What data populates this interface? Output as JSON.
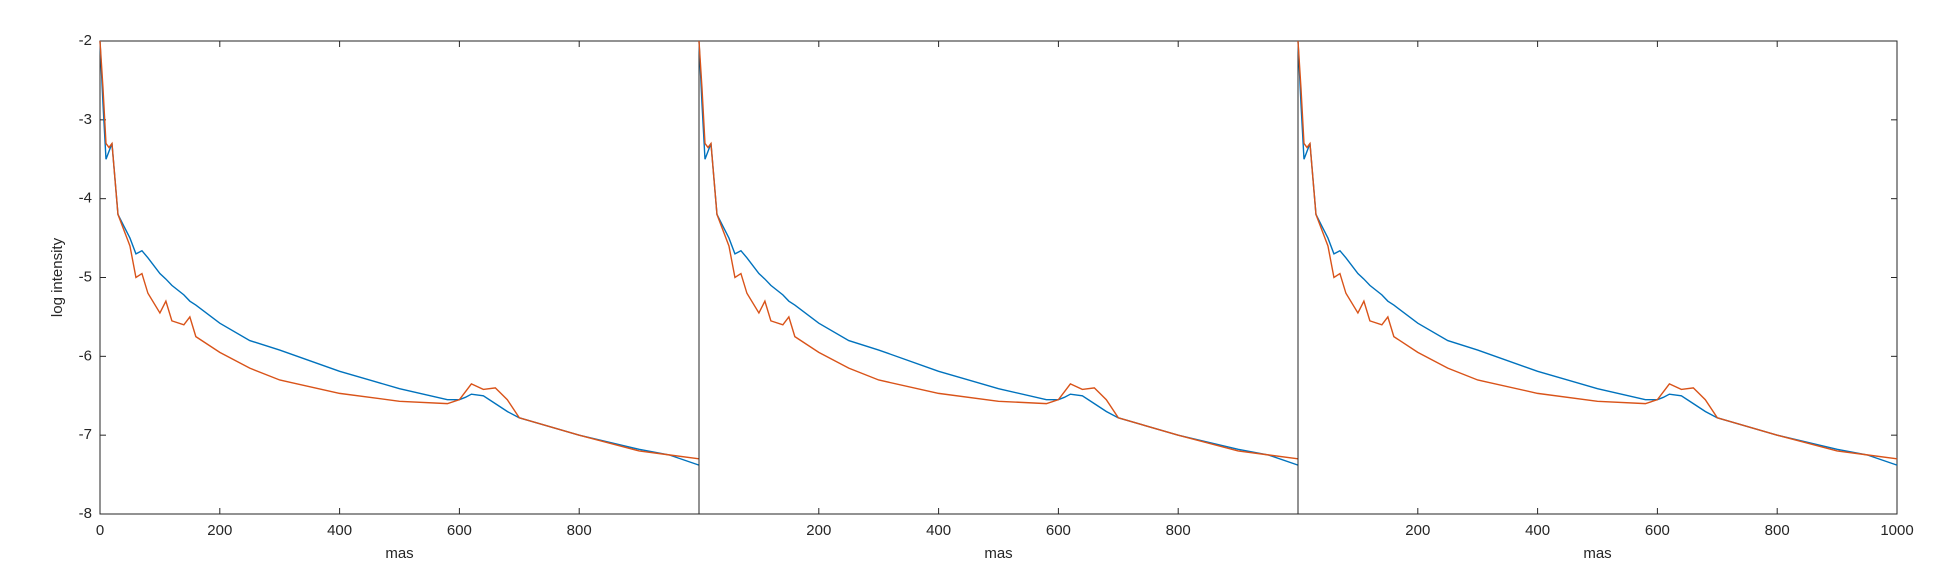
{
  "chart_data": [
    {
      "type": "line",
      "xlabel": "mas",
      "ylabel": "log intensity",
      "xlim": [
        0,
        1000
      ],
      "ylim": [
        -8,
        -2
      ],
      "xticks": [
        0,
        200,
        400,
        600,
        800
      ],
      "yticks": [
        -2,
        -3,
        -4,
        -5,
        -6,
        -7,
        -8
      ],
      "x": [
        0,
        5,
        10,
        15,
        20,
        30,
        40,
        50,
        60,
        70,
        80,
        100,
        110,
        120,
        140,
        150,
        160,
        200,
        250,
        300,
        400,
        500,
        580,
        600,
        610,
        620,
        640,
        660,
        680,
        700,
        800,
        900,
        950,
        1000
      ],
      "series": [
        {
          "name": "blue",
          "color": "#0072BD",
          "values": [
            -2,
            -2.8,
            -3.5,
            -3.4,
            -3.3,
            -4.2,
            -4.35,
            -4.5,
            -4.7,
            -4.66,
            -4.75,
            -4.95,
            -5.02,
            -5.1,
            -5.22,
            -5.3,
            -5.35,
            -5.58,
            -5.8,
            -5.92,
            -6.19,
            -6.41,
            -6.55,
            -6.55,
            -6.52,
            -6.48,
            -6.5,
            -6.6,
            -6.7,
            -6.78,
            -7.0,
            -7.18,
            -7.25,
            -7.38
          ]
        },
        {
          "name": "orange",
          "color": "#D95319",
          "values": [
            -2,
            -2.6,
            -3.3,
            -3.35,
            -3.3,
            -4.2,
            -4.4,
            -4.6,
            -5.0,
            -4.95,
            -5.2,
            -5.45,
            -5.3,
            -5.55,
            -5.6,
            -5.5,
            -5.75,
            -5.95,
            -6.15,
            -6.3,
            -6.47,
            -6.57,
            -6.6,
            -6.55,
            -6.45,
            -6.35,
            -6.42,
            -6.4,
            -6.55,
            -6.78,
            -7.0,
            -7.2,
            -7.25,
            -7.3
          ]
        }
      ]
    },
    {
      "type": "line",
      "xlabel": "mas",
      "xlim": [
        0,
        1000
      ],
      "ylim": [
        -8,
        -2
      ],
      "xticks": [
        200,
        400,
        600,
        800
      ],
      "x": [
        0,
        5,
        10,
        15,
        20,
        30,
        40,
        50,
        60,
        70,
        80,
        100,
        110,
        120,
        140,
        150,
        160,
        200,
        250,
        300,
        400,
        500,
        580,
        600,
        610,
        620,
        640,
        660,
        680,
        700,
        800,
        900,
        950,
        1000
      ],
      "series": [
        {
          "name": "blue",
          "color": "#0072BD",
          "values": [
            -2,
            -2.8,
            -3.5,
            -3.4,
            -3.3,
            -4.2,
            -4.35,
            -4.5,
            -4.7,
            -4.66,
            -4.75,
            -4.95,
            -5.02,
            -5.1,
            -5.22,
            -5.3,
            -5.35,
            -5.58,
            -5.8,
            -5.92,
            -6.19,
            -6.41,
            -6.55,
            -6.55,
            -6.52,
            -6.48,
            -6.5,
            -6.6,
            -6.7,
            -6.78,
            -7.0,
            -7.18,
            -7.25,
            -7.38
          ]
        },
        {
          "name": "orange",
          "color": "#D95319",
          "values": [
            -2,
            -2.6,
            -3.3,
            -3.35,
            -3.3,
            -4.2,
            -4.4,
            -4.6,
            -5.0,
            -4.95,
            -5.2,
            -5.45,
            -5.3,
            -5.55,
            -5.6,
            -5.5,
            -5.75,
            -5.95,
            -6.15,
            -6.3,
            -6.47,
            -6.57,
            -6.6,
            -6.55,
            -6.45,
            -6.35,
            -6.42,
            -6.4,
            -6.55,
            -6.78,
            -7.0,
            -7.2,
            -7.25,
            -7.3
          ]
        }
      ]
    },
    {
      "type": "line",
      "xlabel": "mas",
      "xlim": [
        0,
        1000
      ],
      "ylim": [
        -8,
        -2
      ],
      "xticks": [
        200,
        400,
        600,
        800,
        1000
      ],
      "x": [
        0,
        5,
        10,
        15,
        20,
        30,
        40,
        50,
        60,
        70,
        80,
        100,
        110,
        120,
        140,
        150,
        160,
        200,
        250,
        300,
        400,
        500,
        580,
        600,
        610,
        620,
        640,
        660,
        680,
        700,
        800,
        900,
        950,
        1000
      ],
      "series": [
        {
          "name": "blue",
          "color": "#0072BD",
          "values": [
            -2,
            -2.8,
            -3.5,
            -3.4,
            -3.3,
            -4.2,
            -4.35,
            -4.5,
            -4.7,
            -4.66,
            -4.75,
            -4.95,
            -5.02,
            -5.1,
            -5.22,
            -5.3,
            -5.35,
            -5.58,
            -5.8,
            -5.92,
            -6.19,
            -6.41,
            -6.55,
            -6.55,
            -6.52,
            -6.48,
            -6.5,
            -6.6,
            -6.7,
            -6.78,
            -7.0,
            -7.18,
            -7.25,
            -7.38
          ]
        },
        {
          "name": "orange",
          "color": "#D95319",
          "values": [
            -2,
            -2.6,
            -3.3,
            -3.35,
            -3.3,
            -4.2,
            -4.4,
            -4.6,
            -5.0,
            -4.95,
            -5.2,
            -5.45,
            -5.3,
            -5.55,
            -5.6,
            -5.5,
            -5.75,
            -5.95,
            -6.15,
            -6.3,
            -6.47,
            -6.57,
            -6.6,
            -6.55,
            -6.45,
            -6.35,
            -6.42,
            -6.4,
            -6.55,
            -6.78,
            -7.0,
            -7.2,
            -7.25,
            -7.3
          ]
        }
      ]
    }
  ]
}
